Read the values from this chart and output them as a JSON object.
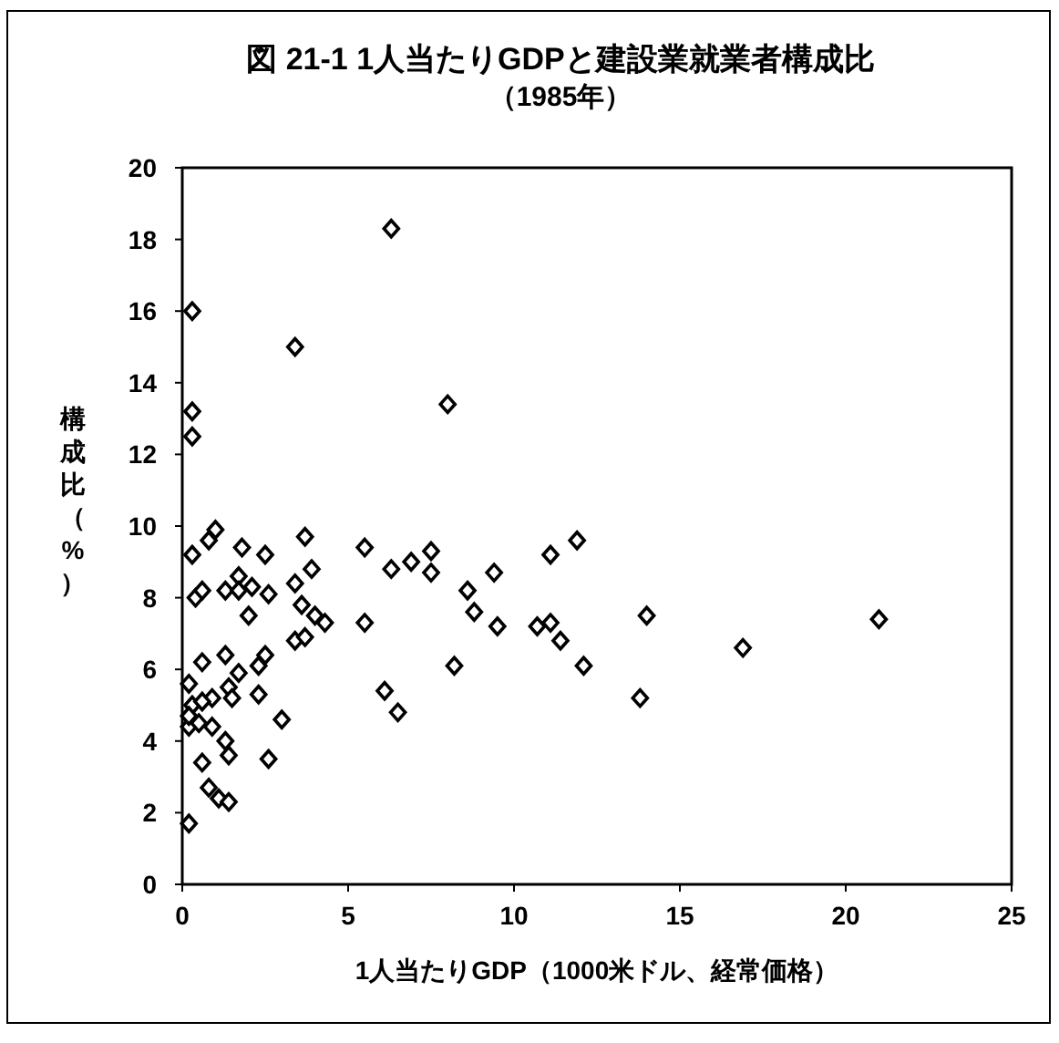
{
  "chart_data": {
    "type": "scatter",
    "title": "図 21-1  1人当たりGDPと建設業就業者構成比",
    "subtitle": "（1985年）",
    "xlabel": "1人当たりGDP（1000米ドル、経常価格）",
    "ylabel": "構成比（%）",
    "xlim": [
      0,
      25
    ],
    "xticks": [
      0,
      5,
      10,
      15,
      20,
      25
    ],
    "ylim": [
      0,
      20
    ],
    "yticks": [
      0,
      2,
      4,
      6,
      8,
      10,
      12,
      14,
      16,
      18,
      20
    ],
    "grid": false,
    "marker": "diamond",
    "series": [
      {
        "color": "#000000",
        "x": [
          0.3,
          3.4,
          6.3,
          8.0,
          0.3,
          0.3,
          0.3,
          1.0,
          0.8,
          1.8,
          2.5,
          3.7,
          3.4,
          3.9,
          1.7,
          1.3,
          1.7,
          2.1,
          2.6,
          0.4,
          0.6,
          2.0,
          3.6,
          4.0,
          4.3,
          3.4,
          3.7,
          0.6,
          1.3,
          2.5,
          2.3,
          1.7,
          0.2,
          1.4,
          1.5,
          0.9,
          2.3,
          0.3,
          0.6,
          0.2,
          0.2,
          0.5,
          0.9,
          3.0,
          1.3,
          1.4,
          0.6,
          2.6,
          0.8,
          1.1,
          1.4,
          0.2,
          5.5,
          6.3,
          6.9,
          7.5,
          7.5,
          8.6,
          9.4,
          11.1,
          11.9,
          5.5,
          8.8,
          9.5,
          10.7,
          11.1,
          11.4,
          12.1,
          14.0,
          13.8,
          8.2,
          6.1,
          6.5,
          16.9,
          21.0
        ],
        "values": [
          16.0,
          15.0,
          18.3,
          13.4,
          13.2,
          12.5,
          9.2,
          9.9,
          9.6,
          9.4,
          9.2,
          9.7,
          8.4,
          8.8,
          8.6,
          8.2,
          8.2,
          8.3,
          8.1,
          8.0,
          8.2,
          7.5,
          7.8,
          7.5,
          7.3,
          6.8,
          6.9,
          6.2,
          6.4,
          6.4,
          6.1,
          5.9,
          5.6,
          5.5,
          5.2,
          5.2,
          5.3,
          5.0,
          5.1,
          4.4,
          4.7,
          4.5,
          4.4,
          4.6,
          4.0,
          3.6,
          3.4,
          3.5,
          2.7,
          2.4,
          2.3,
          1.7,
          9.4,
          8.8,
          9.0,
          9.3,
          8.7,
          8.2,
          8.7,
          9.2,
          9.6,
          7.3,
          7.6,
          7.2,
          7.2,
          7.3,
          6.8,
          6.1,
          7.5,
          5.2,
          6.1,
          5.4,
          4.8,
          6.6,
          7.4
        ]
      }
    ]
  }
}
